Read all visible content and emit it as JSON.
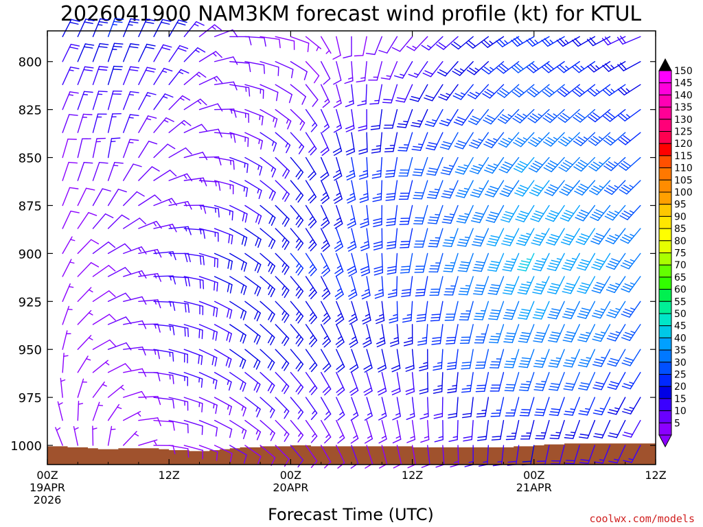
{
  "chart_data": {
    "type": "wind-profile",
    "title": "2026041900 NAM3KM forecast wind profile (kt) for KTUL",
    "xlabel": "Forecast Time (UTC)",
    "credit": "coolwx.com/models",
    "x_ticks": [
      {
        "hour": 0,
        "lines": [
          "00Z",
          "19APR",
          "2026"
        ]
      },
      {
        "hour": 12,
        "lines": [
          "12Z"
        ]
      },
      {
        "hour": 24,
        "lines": [
          "00Z",
          "20APR"
        ]
      },
      {
        "hour": 36,
        "lines": [
          "12Z"
        ]
      },
      {
        "hour": 48,
        "lines": [
          "00Z",
          "21APR"
        ]
      },
      {
        "hour": 60,
        "lines": [
          "12Z"
        ]
      }
    ],
    "xlim": [
      0,
      60
    ],
    "ylim": [
      1010,
      784
    ],
    "y_ticks": [
      800,
      825,
      850,
      875,
      900,
      925,
      950,
      975,
      1000
    ],
    "colorbar": {
      "levels": [
        5,
        10,
        15,
        20,
        25,
        30,
        35,
        40,
        45,
        50,
        55,
        60,
        65,
        70,
        75,
        80,
        85,
        90,
        95,
        100,
        105,
        110,
        115,
        120,
        125,
        130,
        135,
        140,
        145,
        150
      ],
      "colors": [
        "#8b00ff",
        "#6a00ff",
        "#3a00ff",
        "#0000e6",
        "#0028ff",
        "#0050ff",
        "#0078ff",
        "#00a0ff",
        "#00c8e6",
        "#00e6c8",
        "#00f096",
        "#00f050",
        "#32ff00",
        "#64ff00",
        "#aaff00",
        "#e6ff00",
        "#ffff00",
        "#ffe600",
        "#ffc800",
        "#ffa000",
        "#ff8c00",
        "#ff7800",
        "#ff5000",
        "#ff0000",
        "#ff0050",
        "#ff0078",
        "#ff0096",
        "#ff00b4",
        "#ff00dc",
        "#ff00ff"
      ]
    },
    "terrain": {
      "color": "#a0522d",
      "hours": [
        0,
        1,
        2,
        3,
        4,
        5,
        6,
        7,
        8,
        9,
        10,
        11,
        12,
        13,
        14,
        15,
        16,
        17,
        18,
        19,
        20,
        21,
        22,
        23,
        24,
        25,
        26,
        27,
        28,
        29,
        30,
        31,
        32,
        33,
        34,
        35,
        36,
        37,
        38,
        39,
        40,
        41,
        42,
        43,
        44,
        45,
        46,
        47,
        48,
        49,
        50,
        51,
        52,
        53,
        54,
        55,
        56,
        57,
        58,
        59,
        60
      ],
      "pressure": [
        1000.5,
        1000.5,
        1001,
        1001,
        1001.5,
        1002,
        1002,
        1001.5,
        1001.5,
        1001.5,
        1001.5,
        1002,
        1002.5,
        1002.5,
        1003,
        1003,
        1002.5,
        1002,
        1001.5,
        1001,
        1001,
        1000.5,
        1000.5,
        1000.5,
        1000,
        1000,
        1000.5,
        1000.5,
        1000.5,
        1000.5,
        1000.5,
        1000.5,
        1000.5,
        1000.5,
        1000.5,
        1000.5,
        1001,
        1001,
        1001,
        1001,
        1001,
        1001,
        1001,
        1001,
        1001,
        1001,
        1000.5,
        1000.5,
        1000,
        999.5,
        999.5,
        999,
        999,
        999,
        999,
        999,
        999,
        999,
        999,
        999,
        999
      ]
    },
    "wind_levels": [
      787,
      800,
      812,
      825,
      837,
      850,
      862,
      875,
      887,
      900,
      912,
      925,
      937,
      950,
      962,
      975,
      987,
      1000
    ],
    "wind_hours": [
      0,
      1.5,
      3,
      4.5,
      6,
      7.5,
      9,
      10.5,
      12,
      13.5,
      15,
      16.5,
      18,
      19.5,
      21,
      22.5,
      24,
      25.5,
      27,
      28.5,
      30,
      31.5,
      33,
      34.5,
      36,
      37.5,
      39,
      40.5,
      42,
      43.5,
      45,
      46.5,
      48,
      49.5,
      51,
      52.5,
      54,
      55.5,
      57,
      58.5,
      60
    ],
    "wind_anchors": [
      {
        "h": 0,
        "p": 787,
        "dir": 30,
        "spd": 20
      },
      {
        "h": 6,
        "p": 787,
        "dir": 20,
        "spd": 25
      },
      {
        "h": 12,
        "p": 787,
        "dir": 30,
        "spd": 20
      },
      {
        "h": 18,
        "p": 787,
        "dir": 90,
        "spd": 12
      },
      {
        "h": 24,
        "p": 787,
        "dir": 110,
        "spd": 8
      },
      {
        "h": 30,
        "p": 787,
        "dir": 180,
        "spd": 10
      },
      {
        "h": 36,
        "p": 787,
        "dir": 220,
        "spd": 12
      },
      {
        "h": 42,
        "p": 787,
        "dir": 230,
        "spd": 20
      },
      {
        "h": 48,
        "p": 787,
        "dir": 240,
        "spd": 28
      },
      {
        "h": 54,
        "p": 787,
        "dir": 240,
        "spd": 22
      },
      {
        "h": 60,
        "p": 787,
        "dir": 250,
        "spd": 18
      },
      {
        "h": 0,
        "p": 850,
        "dir": 20,
        "spd": 8
      },
      {
        "h": 6,
        "p": 850,
        "dir": 10,
        "spd": 15
      },
      {
        "h": 12,
        "p": 850,
        "dir": 60,
        "spd": 12
      },
      {
        "h": 18,
        "p": 850,
        "dir": 110,
        "spd": 15
      },
      {
        "h": 24,
        "p": 850,
        "dir": 140,
        "spd": 20
      },
      {
        "h": 30,
        "p": 850,
        "dir": 170,
        "spd": 25
      },
      {
        "h": 36,
        "p": 850,
        "dir": 195,
        "spd": 30
      },
      {
        "h": 42,
        "p": 850,
        "dir": 210,
        "spd": 35
      },
      {
        "h": 48,
        "p": 850,
        "dir": 220,
        "spd": 40
      },
      {
        "h": 54,
        "p": 850,
        "dir": 225,
        "spd": 38
      },
      {
        "h": 60,
        "p": 850,
        "dir": 230,
        "spd": 30
      },
      {
        "h": 0,
        "p": 900,
        "dir": 10,
        "spd": 6
      },
      {
        "h": 6,
        "p": 900,
        "dir": 60,
        "spd": 12
      },
      {
        "h": 12,
        "p": 900,
        "dir": 90,
        "spd": 18
      },
      {
        "h": 18,
        "p": 900,
        "dir": 120,
        "spd": 22
      },
      {
        "h": 24,
        "p": 900,
        "dir": 140,
        "spd": 25
      },
      {
        "h": 30,
        "p": 900,
        "dir": 165,
        "spd": 28
      },
      {
        "h": 36,
        "p": 900,
        "dir": 190,
        "spd": 30
      },
      {
        "h": 42,
        "p": 900,
        "dir": 200,
        "spd": 38
      },
      {
        "h": 48,
        "p": 900,
        "dir": 205,
        "spd": 45
      },
      {
        "h": 54,
        "p": 900,
        "dir": 210,
        "spd": 42
      },
      {
        "h": 60,
        "p": 900,
        "dir": 220,
        "spd": 35
      },
      {
        "h": 0,
        "p": 950,
        "dir": 340,
        "spd": 5
      },
      {
        "h": 6,
        "p": 950,
        "dir": 70,
        "spd": 10
      },
      {
        "h": 12,
        "p": 950,
        "dir": 105,
        "spd": 18
      },
      {
        "h": 18,
        "p": 950,
        "dir": 125,
        "spd": 20
      },
      {
        "h": 24,
        "p": 950,
        "dir": 140,
        "spd": 22
      },
      {
        "h": 30,
        "p": 950,
        "dir": 160,
        "spd": 22
      },
      {
        "h": 36,
        "p": 950,
        "dir": 175,
        "spd": 22
      },
      {
        "h": 42,
        "p": 950,
        "dir": 190,
        "spd": 30
      },
      {
        "h": 48,
        "p": 950,
        "dir": 200,
        "spd": 38
      },
      {
        "h": 54,
        "p": 950,
        "dir": 205,
        "spd": 35
      },
      {
        "h": 60,
        "p": 950,
        "dir": 215,
        "spd": 30
      },
      {
        "h": 0,
        "p": 1000,
        "dir": 330,
        "spd": 6
      },
      {
        "h": 6,
        "p": 1000,
        "dir": 10,
        "spd": 5
      },
      {
        "h": 12,
        "p": 1000,
        "dir": 100,
        "spd": 10
      },
      {
        "h": 18,
        "p": 1000,
        "dir": 120,
        "spd": 10
      },
      {
        "h": 24,
        "p": 1000,
        "dir": 140,
        "spd": 10
      },
      {
        "h": 30,
        "p": 1000,
        "dir": 160,
        "spd": 10
      },
      {
        "h": 36,
        "p": 1000,
        "dir": 170,
        "spd": 10
      },
      {
        "h": 42,
        "p": 1000,
        "dir": 180,
        "spd": 15
      },
      {
        "h": 48,
        "p": 1000,
        "dir": 190,
        "spd": 20
      },
      {
        "h": 54,
        "p": 1000,
        "dir": 200,
        "spd": 18
      },
      {
        "h": 60,
        "p": 1000,
        "dir": 210,
        "spd": 15
      }
    ]
  }
}
